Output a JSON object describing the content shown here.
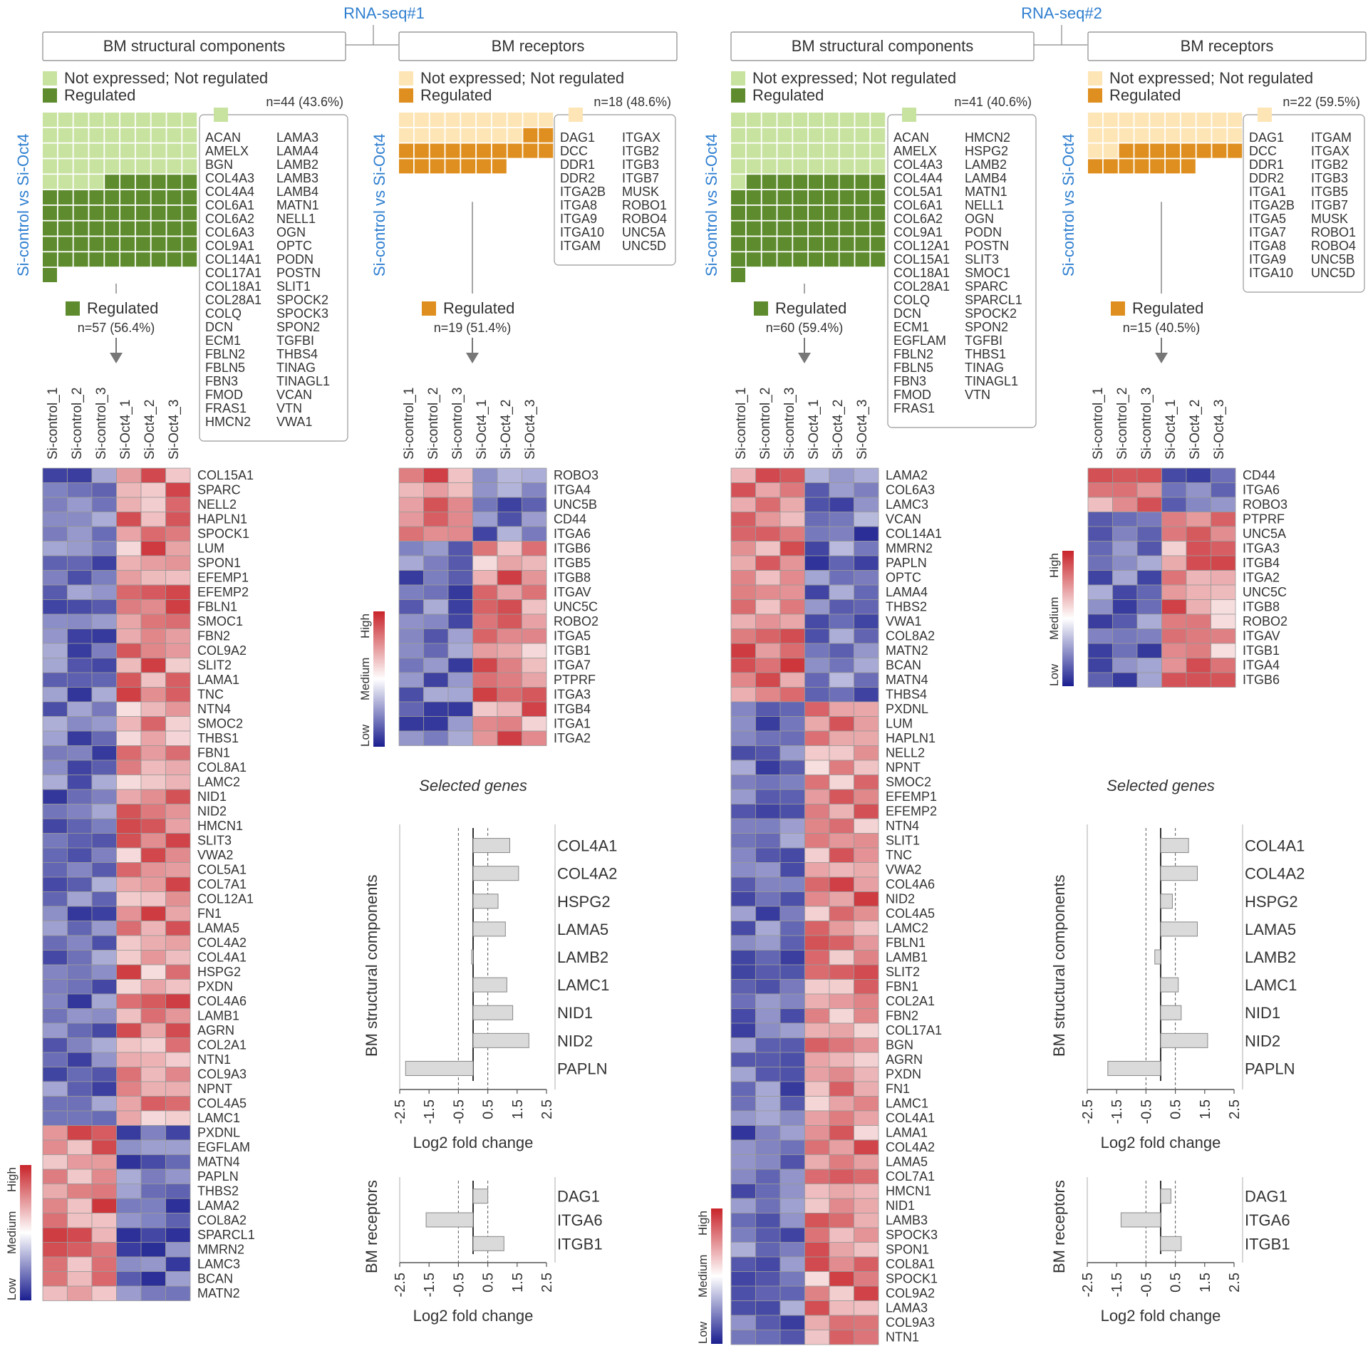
{
  "colors": {
    "green_light": "#c8e2a0",
    "green_dark": "#5e8b2d",
    "orange_light": "#fde5b6",
    "orange_dark": "#df8f1f",
    "blue_text": "#2f7fd0",
    "bar_fill": "#dadada",
    "heat_low": "#1a1e8f",
    "heat_mid": "#ffffff",
    "heat_high": "#c8242a"
  },
  "text": {
    "not_expressed": "Not expressed; Not regulated",
    "regulated": "Regulated",
    "vs_label": "Si-control vs Si-Oct4",
    "selected_genes": "Selected genes",
    "log2fc": "Log2 fold change",
    "bm_structural_axis": "BM structural components",
    "bm_receptors_axis": "BM receptors",
    "scale_high": "High",
    "scale_medium": "Medium",
    "scale_low": "Low",
    "tick_labels": [
      "-2.5",
      "-1.5",
      "-0.5",
      "0.5",
      "1.5",
      "2.5"
    ]
  },
  "samples": [
    "Si-control_1",
    "Si-control_2",
    "Si-control_3",
    "Si-Oct4_1",
    "Si-Oct4_2",
    "Si-Oct4_3"
  ],
  "experiments": [
    {
      "title": "RNA-seq#1",
      "structural": {
        "box_title": "BM structural components",
        "not_count": "n=44 (43.6%)",
        "reg_count": "n=57 (56.4%)",
        "waffle": {
          "total": 101,
          "light": 44
        },
        "list_col1": [
          "ACAN",
          "AMELX",
          "BGN",
          "COL4A3",
          "COL4A4",
          "COL6A1",
          "COL6A2",
          "COL6A3",
          "COL9A1",
          "COL14A1",
          "COL17A1",
          "COL18A1",
          "COL28A1",
          "COLQ",
          "DCN",
          "ECM1",
          "FBLN2",
          "FBLN5",
          "FBN3",
          "FMOD",
          "FRAS1",
          "HMCN2"
        ],
        "list_col2": [
          "LAMA3",
          "LAMA4",
          "LAMB2",
          "LAMB3",
          "LAMB4",
          "MATN1",
          "NELL1",
          "OGN",
          "OPTC",
          "PODN",
          "POSTN",
          "SLIT1",
          "SPOCK2",
          "SPOCK3",
          "SPON2",
          "TGFBI",
          "THBS4",
          "TINAG",
          "TINAGL1",
          "VCAN",
          "VTN",
          "VWA1"
        ],
        "heat_genes": [
          "COL15A1",
          "SPARC",
          "NELL2",
          "HAPLN1",
          "SPOCK1",
          "LUM",
          "SPON1",
          "EFEMP1",
          "EFEMP2",
          "FBLN1",
          "SMOC1",
          "FBN2",
          "COL9A2",
          "SLIT2",
          "LAMA1",
          "TNC",
          "NTN4",
          "SMOC2",
          "THBS1",
          "FBN1",
          "COL8A1",
          "LAMC2",
          "NID1",
          "NID2",
          "HMCN1",
          "SLIT3",
          "VWA2",
          "COL5A1",
          "COL7A1",
          "COL12A1",
          "FN1",
          "LAMA5",
          "COL4A2",
          "COL4A1",
          "HSPG2",
          "PXDN",
          "COL4A6",
          "LAMB1",
          "AGRN",
          "COL2A1",
          "NTN1",
          "COL9A3",
          "NPNT",
          "COL4A5",
          "LAMC1",
          "PXDNL",
          "EGFLAM",
          "MATN4",
          "PAPLN",
          "THBS2",
          "LAMA2",
          "COL8A2",
          "SPARCL1",
          "MMRN2",
          "LAMC3",
          "BCAN",
          "MATN2"
        ]
      },
      "receptors": {
        "box_title": "BM receptors",
        "not_count": "n=18 (48.6%)",
        "reg_count": "n=19 (51.4%)",
        "waffle": {
          "total": 37,
          "light": 18
        },
        "list_col1": [
          "DAG1",
          "DCC",
          "DDR1",
          "DDR2",
          "ITGA2B",
          "ITGA8",
          "ITGA9",
          "ITGA10",
          "ITGAM"
        ],
        "list_col2": [
          "ITGAX",
          "ITGB2",
          "ITGB3",
          "ITGB7",
          "MUSK",
          "ROBO1",
          "ROBO4",
          "UNC5A",
          "UNC5D"
        ],
        "heat_genes": [
          "ROBO3",
          "ITGA4",
          "UNC5B",
          "CD44",
          "ITGA6",
          "ITGB6",
          "ITGB5",
          "ITGB8",
          "ITGAV",
          "UNC5C",
          "ROBO2",
          "ITGA5",
          "ITGB1",
          "ITGA7",
          "PTPRF",
          "ITGA3",
          "ITGB4",
          "ITGA1",
          "ITGA2"
        ]
      },
      "bar_struct": {
        "genes": [
          "COL4A1",
          "COL4A2",
          "HSPG2",
          "LAMA5",
          "LAMB2",
          "LAMC1",
          "NID1",
          "NID2",
          "PAPLN"
        ],
        "values": [
          1.25,
          1.55,
          0.85,
          1.1,
          -0.05,
          1.15,
          1.35,
          1.9,
          -2.3
        ]
      },
      "bar_rec": {
        "genes": [
          "DAG1",
          "ITGA6",
          "ITGB1"
        ],
        "values": [
          0.5,
          -1.6,
          1.05
        ]
      }
    },
    {
      "title": "RNA-seq#2",
      "structural": {
        "box_title": "BM structural components",
        "not_count": "n=41 (40.6%)",
        "reg_count": "n=60 (59.4%)",
        "waffle": {
          "total": 101,
          "light": 41
        },
        "list_col1": [
          "ACAN",
          "AMELX",
          "COL4A3",
          "COL4A4",
          "COL5A1",
          "COL6A1",
          "COL6A2",
          "COL9A1",
          "COL12A1",
          "COL15A1",
          "COL18A1",
          "COL28A1",
          "COLQ",
          "DCN",
          "ECM1",
          "EGFLAM",
          "FBLN2",
          "FBLN5",
          "FBN3",
          "FMOD",
          "FRAS1"
        ],
        "list_col2": [
          "HMCN2",
          "HSPG2",
          "LAMB2",
          "LAMB4",
          "MATN1",
          "NELL1",
          "OGN",
          "PODN",
          "POSTN",
          "SLIT3",
          "SMOC1",
          "SPARC",
          "SPARCL1",
          "SPOCK2",
          "SPON2",
          "TGFBI",
          "THBS1",
          "TINAG",
          "TINAGL1",
          "VTN"
        ],
        "heat_genes": [
          "LAMA2",
          "COL6A3",
          "LAMC3",
          "VCAN",
          "COL14A1",
          "MMRN2",
          "PAPLN",
          "OPTC",
          "LAMA4",
          "THBS2",
          "VWA1",
          "COL8A2",
          "MATN2",
          "BCAN",
          "MATN4",
          "THBS4",
          "PXDNL",
          "LUM",
          "HAPLN1",
          "NELL2",
          "NPNT",
          "SMOC2",
          "EFEMP1",
          "EFEMP2",
          "NTN4",
          "SLIT1",
          "TNC",
          "VWA2",
          "COL4A6",
          "NID2",
          "COL4A5",
          "LAMC2",
          "FBLN1",
          "LAMB1",
          "SLIT2",
          "FBN1",
          "COL2A1",
          "FBN2",
          "COL17A1",
          "BGN",
          "AGRN",
          "PXDN",
          "FN1",
          "LAMC1",
          "COL4A1",
          "LAMA1",
          "COL4A2",
          "LAMA5",
          "COL7A1",
          "HMCN1",
          "NID1",
          "LAMB3",
          "SPOCK3",
          "SPON1",
          "COL8A1",
          "SPOCK1",
          "COL9A2",
          "LAMA3",
          "COL9A3",
          "NTN1"
        ]
      },
      "receptors": {
        "box_title": "BM receptors",
        "not_count": "n=22 (59.5%)",
        "reg_count": "n=15 (40.5%)",
        "waffle": {
          "total": 37,
          "light": 22
        },
        "list_col1": [
          "DAG1",
          "DCC",
          "DDR1",
          "DDR2",
          "ITGA1",
          "ITGA2B",
          "ITGA5",
          "ITGA7",
          "ITGA8",
          "ITGA9",
          "ITGA10"
        ],
        "list_col2": [
          "ITGAM",
          "ITGAX",
          "ITGB2",
          "ITGB3",
          "ITGB5",
          "ITGB7",
          "MUSK",
          "ROBO1",
          "ROBO4",
          "UNC5B",
          "UNC5D"
        ],
        "heat_genes": [
          "CD44",
          "ITGA6",
          "ROBO3",
          "PTPRF",
          "UNC5A",
          "ITGA3",
          "ITGB4",
          "ITGA2",
          "UNC5C",
          "ITGB8",
          "ROBO2",
          "ITGAV",
          "ITGB1",
          "ITGA4",
          "ITGB6"
        ]
      },
      "bar_struct": {
        "genes": [
          "COL4A1",
          "COL4A2",
          "HSPG2",
          "LAMA5",
          "LAMB2",
          "LAMC1",
          "NID1",
          "NID2",
          "PAPLN"
        ],
        "values": [
          0.95,
          1.25,
          0.4,
          1.25,
          -0.2,
          0.6,
          0.7,
          1.6,
          -1.8
        ]
      },
      "bar_rec": {
        "genes": [
          "DAG1",
          "ITGA6",
          "ITGB1"
        ],
        "values": [
          0.35,
          -1.35,
          0.7
        ]
      }
    }
  ]
}
